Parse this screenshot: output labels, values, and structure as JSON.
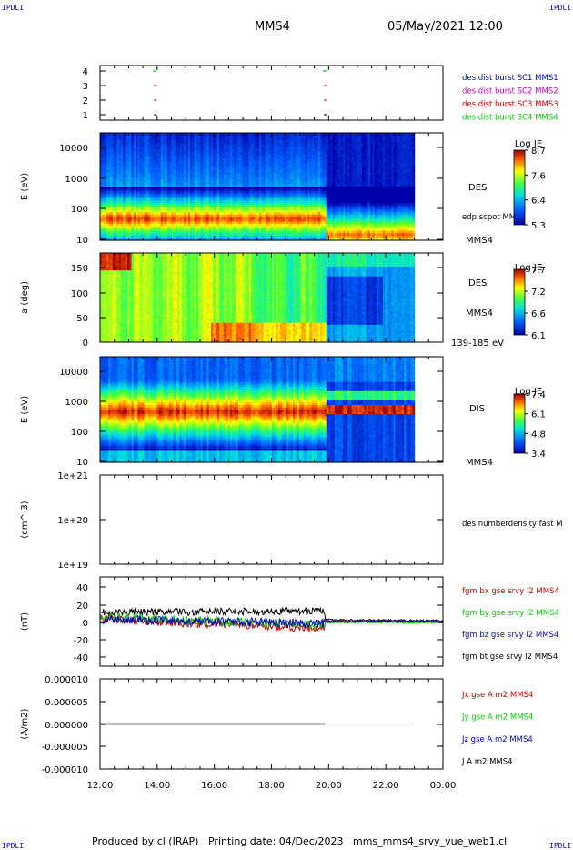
{
  "corner_label": "IPDLI",
  "header": {
    "spacecraft": "MMS4",
    "datetime": "05/May/2021 12:00"
  },
  "footer": {
    "produced_by": "Produced by cl (IRAP)",
    "printing_date": "Printing date: 04/Dec/2023",
    "filename": "mms_mms4_srvy_vue_web1.cl"
  },
  "colors": {
    "blue": "#0000cc",
    "magenta": "#cc00cc",
    "red": "#cc0000",
    "green": "#00cc00",
    "black": "#000000"
  },
  "chart_data": [
    {
      "type": "scatter",
      "ylabel": "",
      "yticks": [
        "4",
        "3",
        "2",
        "1"
      ],
      "series": [
        {
          "name": "des dist burst SC1 MMS1",
          "color": "#0000cc",
          "level": 1,
          "x": [
            "13:55",
            "19:52"
          ]
        },
        {
          "name": "des dist burst SC2 MMS2",
          "color": "#cc00cc",
          "level": 2,
          "x": [
            "13:55",
            "19:52"
          ]
        },
        {
          "name": "des dist burst SC3 MMS3",
          "color": "#cc0000",
          "level": 3,
          "x": [
            "13:55",
            "19:52"
          ]
        },
        {
          "name": "des dist burst SC4 MMS4",
          "color": "#00cc00",
          "level": 4,
          "x": [
            "13:55",
            "19:52"
          ]
        }
      ]
    },
    {
      "type": "heatmap",
      "ylabel": "E (eV)",
      "yticks": [
        "10000",
        "1000",
        "100",
        "10"
      ],
      "log_y": true,
      "ylim": [
        10,
        30000
      ],
      "right_labels": [
        "DES",
        "edp scpot MMS4",
        "MMS4"
      ],
      "colorbar": {
        "title": "Log JE",
        "ticks": [
          "8.7",
          "7.6",
          "6.4",
          "5.3"
        ],
        "range": [
          5.3,
          8.7
        ]
      },
      "description_bands": [
        {
          "from": "12:00",
          "to": "19:52",
          "peak_energy_eV": 50,
          "peak_logJE": 8.7
        },
        {
          "from": "19:52",
          "to": "23:00",
          "peak_energy_eV": 12,
          "peak_logJE": 8.2
        }
      ]
    },
    {
      "type": "heatmap",
      "ylabel": "a (deg)",
      "yticks": [
        "150",
        "100",
        "50",
        "0"
      ],
      "ylim": [
        0,
        180
      ],
      "right_labels": [
        "DES",
        "MMS4",
        "139-185 eV"
      ],
      "colorbar": {
        "title": "Log JE",
        "ticks": [
          "7.7",
          "7.2",
          "6.6",
          "6.1"
        ],
        "range": [
          6.1,
          7.7
        ]
      }
    },
    {
      "type": "heatmap",
      "ylabel": "E (eV)",
      "yticks": [
        "10000",
        "1000",
        "100",
        "10"
      ],
      "log_y": true,
      "ylim": [
        10,
        20000
      ],
      "right_labels": [
        "DIS",
        "MMS4"
      ],
      "colorbar": {
        "title": "Log JE",
        "ticks": [
          "7.4",
          "6.1",
          "4.8",
          "3.4"
        ],
        "range": [
          3.4,
          7.4
        ]
      }
    },
    {
      "type": "line",
      "ylabel": "(cm^-3)",
      "yticks": [
        "1e+21",
        "1e+20",
        "1e+19"
      ],
      "log_y": true,
      "ylim": [
        1e+19,
        1e+21
      ],
      "series": [
        {
          "name": "des numberdensity fast M",
          "color": "#000000",
          "values": []
        }
      ]
    },
    {
      "type": "line",
      "ylabel": "(nT)",
      "yticks": [
        "40",
        "20",
        "0",
        "-20",
        "-40"
      ],
      "ylim": [
        -50,
        50
      ],
      "series": [
        {
          "name": "fgm bx gse srvy l2 MMS4",
          "color": "#cc0000",
          "x": [
            "12:00",
            "19:52",
            "19:52",
            "23:00",
            "00:00"
          ],
          "values": [
            3,
            -8,
            1,
            1,
            0
          ]
        },
        {
          "name": "fgm by gse srvy l2 MMS4",
          "color": "#00cc00",
          "x": [
            "12:00",
            "19:52",
            "19:52",
            "23:00",
            "00:00"
          ],
          "values": [
            5,
            -4,
            -1,
            -2,
            -1
          ]
        },
        {
          "name": "fgm bz gse srvy l2 MMS4",
          "color": "#0000cc",
          "x": [
            "12:00",
            "19:52",
            "19:52",
            "23:00",
            "00:00"
          ],
          "values": [
            2,
            -2,
            0,
            -1,
            0
          ]
        },
        {
          "name": "fgm bt gse srvy l2 MMS4",
          "color": "#000000",
          "x": [
            "12:00",
            "19:52",
            "19:52",
            "23:00",
            "00:00"
          ],
          "values": [
            10,
            12,
            2,
            2,
            1
          ]
        }
      ]
    },
    {
      "type": "line",
      "ylabel": "(A/m2)",
      "yticks": [
        "0.000010",
        "0.000005",
        "0.000000",
        "-0.000005",
        "-0.000010"
      ],
      "ylim": [
        -1e-05,
        1e-05
      ],
      "series": [
        {
          "name": "Jx gse A m2 MMS4",
          "color": "#cc0000",
          "values": [
            0,
            0
          ]
        },
        {
          "name": "Jy gse A m2 MMS4",
          "color": "#00cc00",
          "values": [
            0,
            0
          ]
        },
        {
          "name": "Jz gse A m2 MMS4",
          "color": "#0000cc",
          "values": [
            0,
            0
          ]
        },
        {
          "name": "J A m2 MMS4",
          "color": "#000000",
          "values": [
            0,
            0
          ]
        }
      ]
    }
  ],
  "x_axis": {
    "ticks": [
      "12:00",
      "14:00",
      "16:00",
      "18:00",
      "20:00",
      "22:00",
      "00:00"
    ]
  }
}
